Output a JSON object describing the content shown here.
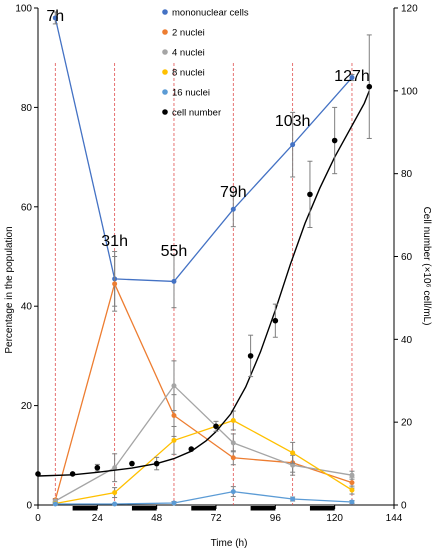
{
  "chart_data": {
    "type": "line",
    "xlabel": "Time (h)",
    "ylabel_left": "Percentage in the population",
    "ylabel_right": "Cell number (×10⁶ cell/mL)",
    "xlim": [
      0,
      144
    ],
    "ylim_left": [
      0,
      100
    ],
    "ylim_right": [
      0,
      120
    ],
    "x_ticks": [
      "0",
      "24",
      "48",
      "72",
      "96",
      "120",
      "144"
    ],
    "y_ticks_left": [
      "0",
      "20",
      "40",
      "60",
      "80",
      "100"
    ],
    "y_ticks_right": [
      "0",
      "20",
      "40",
      "60",
      "80",
      "100",
      "120"
    ],
    "grid": false,
    "legend_position": "top-center",
    "sampling_times": [
      7,
      31,
      55,
      79,
      103,
      127
    ],
    "time_annotations": [
      {
        "label": "7h",
        "x": 7
      },
      {
        "label": "31h",
        "x": 31
      },
      {
        "label": "55h",
        "x": 55
      },
      {
        "label": "79h",
        "x": 79
      },
      {
        "label": "103h",
        "x": 103
      },
      {
        "label": "127h",
        "x": 127
      }
    ],
    "dark_periods": [
      [
        14,
        24
      ],
      [
        38,
        48
      ],
      [
        62,
        72
      ],
      [
        86,
        96
      ],
      [
        110,
        120
      ]
    ],
    "series": [
      {
        "name": "mononuclear cells",
        "axis": "left",
        "color": "#4472c4",
        "x": [
          7,
          31,
          55,
          79,
          103,
          127
        ],
        "y": [
          98,
          45.5,
          45,
          59.5,
          72.5,
          86
        ],
        "err": [
          1.2,
          5.5,
          5.3,
          3.5,
          6.5,
          0.6
        ]
      },
      {
        "name": "2 nuclei",
        "axis": "left",
        "color": "#ed7d31",
        "x": [
          7,
          31,
          55,
          79,
          103,
          127
        ],
        "y": [
          1,
          44.5,
          18,
          9.5,
          8.5,
          4.5
        ],
        "err": [
          0.3,
          5.5,
          4.2,
          1.4,
          1.9,
          1.1
        ]
      },
      {
        "name": "4 nuclei",
        "axis": "left",
        "color": "#a5a5a5",
        "x": [
          7,
          31,
          55,
          79,
          103,
          127
        ],
        "y": [
          0.8,
          7.5,
          24,
          12.5,
          8,
          6
        ],
        "err": [
          0.3,
          2.8,
          5,
          1.8,
          2,
          0.8
        ]
      },
      {
        "name": "8 nuclei",
        "axis": "left",
        "color": "#ffc000",
        "x": [
          7,
          31,
          55,
          79,
          103,
          127
        ],
        "y": [
          0.3,
          2.5,
          13,
          17,
          10.5,
          3
        ],
        "err": [
          0.2,
          1,
          2.8,
          1.9,
          2.1,
          0.8
        ]
      },
      {
        "name": "16 nuclei",
        "axis": "left",
        "color": "#5b9bd5",
        "x": [
          7,
          31,
          55,
          79,
          103,
          127
        ],
        "y": [
          0.2,
          0.2,
          0.4,
          2.7,
          1.2,
          0.6
        ],
        "err": [
          0.1,
          0.1,
          0.3,
          1,
          0.4,
          0.3
        ]
      },
      {
        "name": "cell number",
        "axis": "right",
        "color": "#000000",
        "x": [
          0,
          14,
          24,
          38,
          48,
          62,
          72,
          86,
          96,
          110,
          120,
          134
        ],
        "y": [
          7.5,
          7.5,
          9,
          10,
          10,
          13.5,
          19,
          36,
          44.5,
          75,
          88,
          101
        ],
        "err": [
          0,
          0,
          0.8,
          0,
          1.5,
          0,
          1.2,
          5,
          4,
          8,
          8,
          12.5
        ],
        "fit_x": [
          0,
          14,
          24,
          38,
          48,
          55,
          62,
          68,
          72,
          78,
          84,
          90,
          96,
          102,
          108,
          114,
          120,
          126,
          132,
          134
        ],
        "fit_y": [
          7,
          7.3,
          7.9,
          8.9,
          10,
          11.2,
          13,
          15.5,
          17.7,
          22,
          28.5,
          37,
          47,
          58,
          68,
          76.5,
          84,
          90.5,
          97,
          100
        ]
      }
    ]
  }
}
